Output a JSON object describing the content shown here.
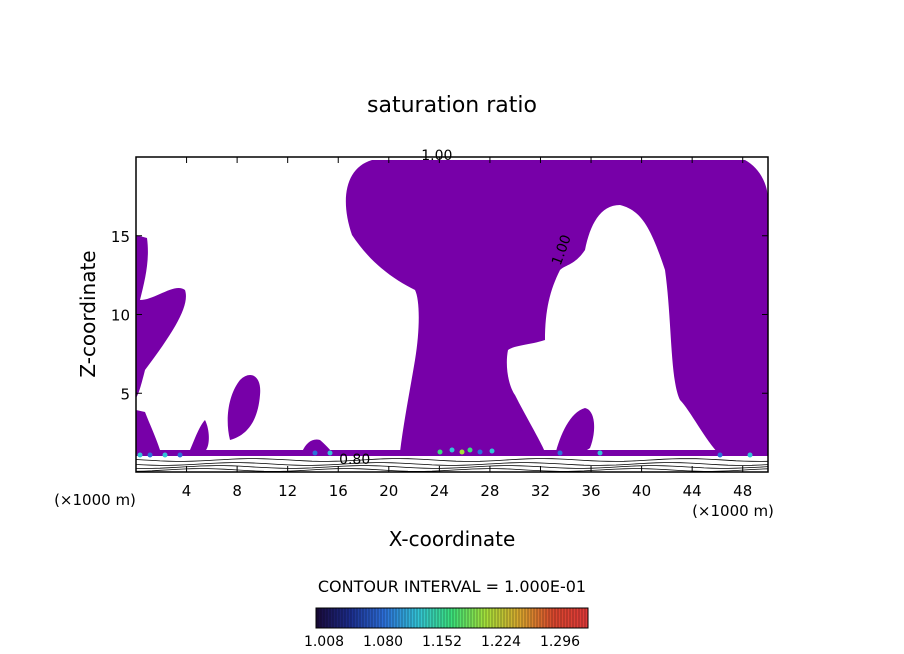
{
  "chart_data": {
    "type": "contour",
    "title": "saturation ratio",
    "xlabel": "X-coordinate",
    "ylabel": "Z-coordinate",
    "x_unit": "(×1000 m)",
    "xlim": [
      0,
      50
    ],
    "ylim": [
      0,
      20
    ],
    "x_ticks": [
      4,
      8,
      12,
      16,
      20,
      24,
      28,
      32,
      36,
      40,
      44,
      48
    ],
    "y_ticks": [
      5,
      10,
      15
    ],
    "contour_labels": [
      {
        "text": "1.00",
        "x": 23.8,
        "y": 19.8
      },
      {
        "text": "1.00",
        "x": 34.0,
        "y": 14.0,
        "rotate": -70
      },
      {
        "text": "0.80",
        "x": 17.3,
        "y": 0.5
      }
    ],
    "contour_interval_text": "CONTOUR INTERVAL = 1.000E-01",
    "colorbar": {
      "ticks": [
        "1.008",
        "1.080",
        "1.152",
        "1.224",
        "1.296"
      ],
      "colors": [
        "#1a0a3a",
        "#1c2d8c",
        "#2d6fd9",
        "#33c3d6",
        "#3be07a",
        "#a6e03a",
        "#d9a62e",
        "#d9462e",
        "#e03a3a"
      ]
    },
    "fill_color": "#7700a8"
  }
}
